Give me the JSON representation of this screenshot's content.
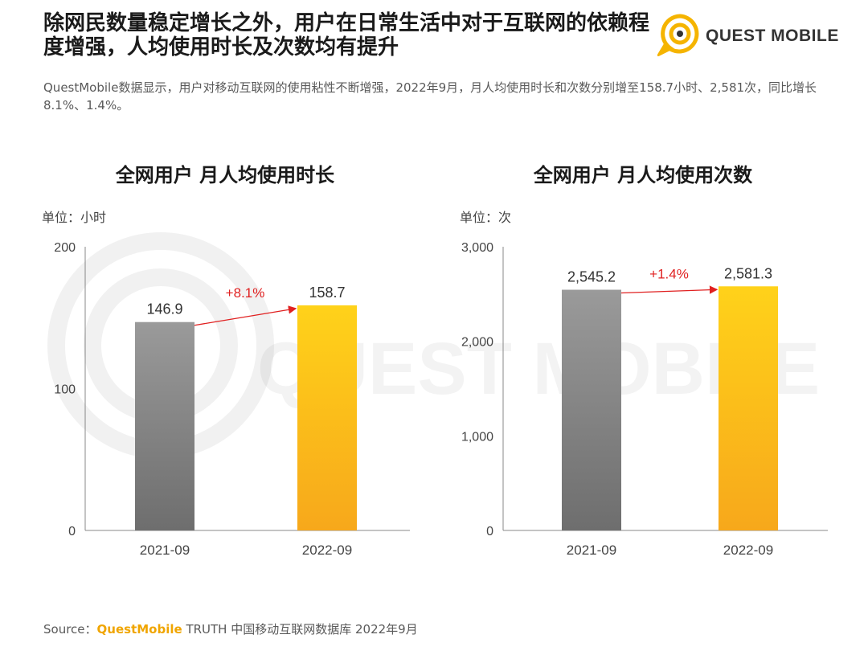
{
  "header": {
    "title": "除网民数量稳定增长之外，用户在日常生活中对于互联网的依赖程度增强，人均使用时长及次数均有提升",
    "subtitle": "QuestMobile数据显示，用户对移动互联网的使用粘性不断增强，2022年9月，月人均使用时长和次数分别增至158.7小时、2,581次，同比增长8.1%、1.4%。",
    "logo_text": "QUEST MOBILE",
    "watermark_text": "QUEST MOBILE"
  },
  "footer": {
    "source_prefix": "Source：",
    "source_brand": "QuestMobile",
    "source_rest": " TRUTH 中国移动互联网数据库 2022年9月"
  },
  "colors": {
    "gray_top": "#9a9a9a",
    "gray_bottom": "#6e6e6e",
    "yellow_top": "#ffd21a",
    "yellow_bottom": "#f7a81b",
    "arrow": "#e02020",
    "brand": "#f5b400"
  },
  "chart_data": [
    {
      "type": "bar",
      "title": "全网用户 月人均使用时长",
      "unit_label": "单位：小时",
      "categories": [
        "2021-09",
        "2022-09"
      ],
      "values": [
        146.9,
        158.7
      ],
      "value_labels": [
        "146.9",
        "158.7"
      ],
      "ylim": [
        0,
        200
      ],
      "yticks": [
        0,
        100,
        200
      ],
      "ytick_labels": [
        "0",
        "100",
        "200"
      ],
      "growth_label": "+8.1%"
    },
    {
      "type": "bar",
      "title": "全网用户 月人均使用次数",
      "unit_label": "单位：次",
      "categories": [
        "2021-09",
        "2022-09"
      ],
      "values": [
        2545.2,
        2581.3
      ],
      "value_labels": [
        "2,545.2",
        "2,581.3"
      ],
      "ylim": [
        0,
        3000
      ],
      "yticks": [
        0,
        1000,
        2000,
        3000
      ],
      "ytick_labels": [
        "0",
        "1,000",
        "2,000",
        "3,000"
      ],
      "growth_label": "+1.4%"
    }
  ]
}
